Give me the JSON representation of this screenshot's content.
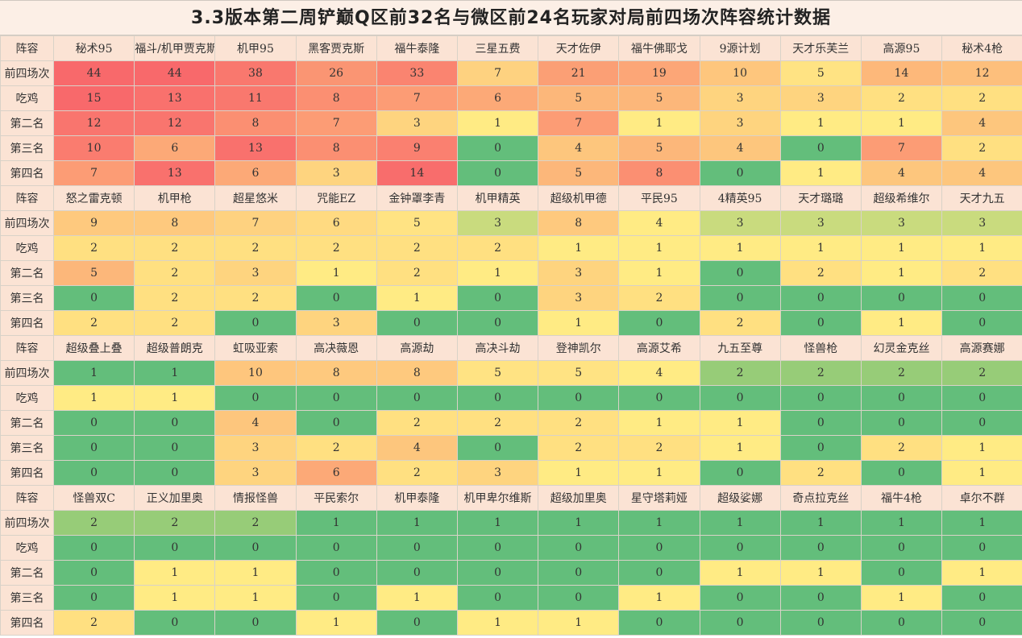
{
  "title": "3.3版本第二周铲巅Q区前32名与微区前24名玩家对局前四场次阵容统计数据",
  "header_label": "阵容",
  "row_labels": [
    "前四场次",
    "吃鸡",
    "第二名",
    "第三名",
    "第四名"
  ],
  "blocks": [
    {
      "names": [
        "秘术95",
        "福斗/机甲贾克斯",
        "机甲95",
        "黑客贾克斯",
        "福牛泰隆",
        "三星五费",
        "天才佐伊",
        "福牛佛耶戈",
        "9源计划",
        "天才乐芙兰",
        "高源95",
        "秘术4枪"
      ],
      "rows": [
        [
          44,
          44,
          38,
          26,
          33,
          7,
          21,
          19,
          10,
          5,
          14,
          12
        ],
        [
          15,
          13,
          11,
          8,
          7,
          6,
          5,
          5,
          3,
          3,
          2,
          2
        ],
        [
          12,
          12,
          8,
          7,
          3,
          1,
          7,
          1,
          3,
          1,
          1,
          4
        ],
        [
          10,
          6,
          13,
          8,
          9,
          0,
          4,
          5,
          4,
          0,
          7,
          2
        ],
        [
          7,
          13,
          6,
          3,
          14,
          0,
          5,
          8,
          0,
          1,
          4,
          4
        ]
      ]
    },
    {
      "names": [
        "怒之雷克顿",
        "机甲枪",
        "超星悠米",
        "咒能EZ",
        "金钟罩李青",
        "机甲精英",
        "超级机甲德",
        "平民95",
        "4精英95",
        "天才璐璐",
        "超级希维尔",
        "天才九五"
      ],
      "rows": [
        [
          9,
          8,
          7,
          6,
          5,
          3,
          8,
          4,
          3,
          3,
          3,
          3
        ],
        [
          2,
          2,
          2,
          2,
          2,
          2,
          1,
          1,
          1,
          1,
          1,
          1
        ],
        [
          5,
          2,
          3,
          1,
          2,
          1,
          3,
          1,
          0,
          2,
          1,
          2
        ],
        [
          0,
          2,
          2,
          0,
          1,
          0,
          3,
          2,
          0,
          0,
          0,
          0
        ],
        [
          2,
          2,
          0,
          3,
          0,
          0,
          1,
          0,
          2,
          0,
          1,
          0
        ]
      ]
    },
    {
      "names": [
        "超级叠上叠",
        "超级普朗克",
        "虹吸亚索",
        "高决薇恩",
        "高源劫",
        "高决斗劫",
        "登神凯尔",
        "高源艾希",
        "九五至尊",
        "怪兽枪",
        "幻灵金克丝",
        "高源赛娜"
      ],
      "rows": [
        [
          1,
          1,
          10,
          8,
          8,
          5,
          5,
          4,
          2,
          2,
          2,
          2
        ],
        [
          1,
          1,
          0,
          0,
          0,
          0,
          0,
          0,
          0,
          0,
          0,
          0
        ],
        [
          0,
          0,
          4,
          0,
          2,
          2,
          2,
          1,
          1,
          0,
          0,
          0
        ],
        [
          0,
          0,
          3,
          2,
          4,
          0,
          2,
          2,
          1,
          0,
          2,
          1
        ],
        [
          0,
          0,
          3,
          6,
          2,
          3,
          1,
          1,
          0,
          2,
          0,
          1
        ]
      ]
    },
    {
      "names": [
        "怪兽双C",
        "正义加里奥",
        "情报怪兽",
        "平民索尔",
        "机甲泰隆",
        "机甲卑尔维斯",
        "超级加里奥",
        "星守塔莉娅",
        "超级娑娜",
        "奇点拉克丝",
        "福牛4枪",
        "卓尔不群"
      ],
      "rows": [
        [
          2,
          2,
          2,
          1,
          1,
          1,
          1,
          1,
          1,
          1,
          1,
          1
        ],
        [
          0,
          0,
          0,
          0,
          0,
          0,
          0,
          0,
          0,
          0,
          0,
          0
        ],
        [
          0,
          1,
          1,
          0,
          0,
          0,
          0,
          0,
          1,
          1,
          0,
          1
        ],
        [
          0,
          1,
          1,
          0,
          1,
          0,
          0,
          1,
          0,
          0,
          1,
          0
        ],
        [
          2,
          0,
          0,
          1,
          0,
          1,
          1,
          0,
          0,
          0,
          0,
          0
        ]
      ]
    }
  ],
  "colors": {
    "header_bg": "#fbe3d4",
    "scale_zero": "#63be7b",
    "scale_low": "#ffeb84",
    "scale_high": "#f8696b"
  }
}
